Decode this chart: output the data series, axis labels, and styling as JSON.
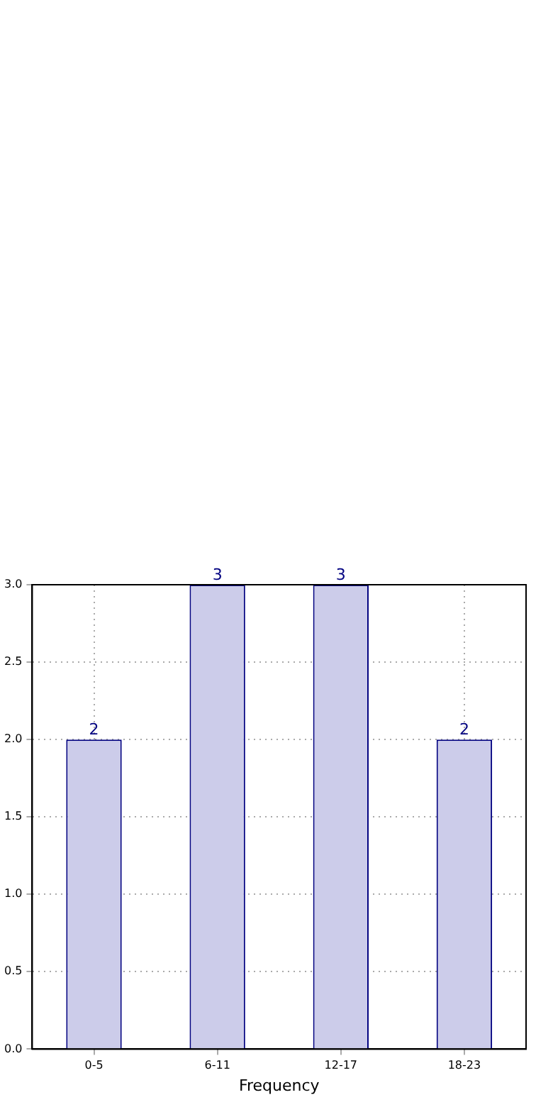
{
  "chart_data": {
    "type": "bar",
    "xlabel": "Frequency",
    "categories": [
      "0-5",
      "6-11",
      "12-17",
      "18-23"
    ],
    "values": [
      2,
      3,
      3,
      2
    ],
    "color": "#ccccea",
    "ylim": [
      0,
      3
    ],
    "yticks": [
      {
        "value": 0,
        "label": "0.0"
      },
      {
        "value": 0.5,
        "label": "0.5"
      },
      {
        "value": 1,
        "label": "1.0"
      },
      {
        "value": 1.5,
        "label": "1.5"
      },
      {
        "value": 2,
        "label": "2.0"
      },
      {
        "value": 2.5,
        "label": "2.5"
      },
      {
        "value": 3,
        "label": "3.0"
      }
    ],
    "grid": true,
    "data_labels": true
  }
}
